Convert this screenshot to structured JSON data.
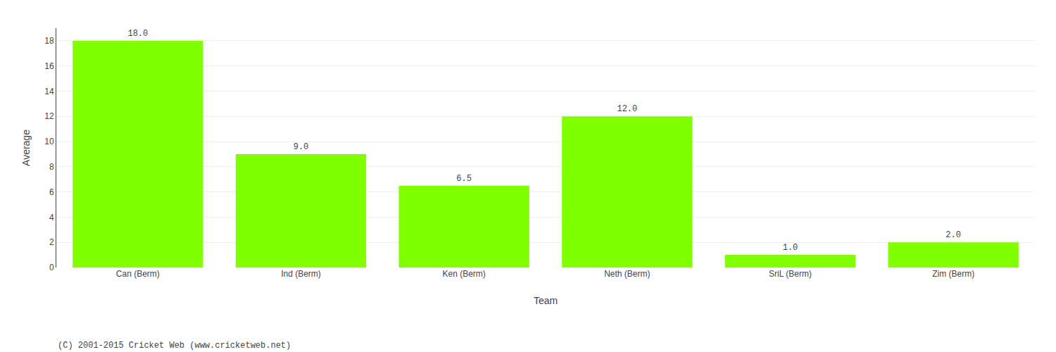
{
  "chart_data": {
    "type": "bar",
    "categories": [
      "Can (Berm)",
      "Ind (Berm)",
      "Ken (Berm)",
      "Neth (Berm)",
      "SriL (Berm)",
      "Zim (Berm)"
    ],
    "values": [
      18.0,
      9.0,
      6.5,
      12.0,
      1.0,
      2.0
    ],
    "value_labels": [
      "18.0",
      "9.0",
      "6.5",
      "12.0",
      "1.0",
      "2.0"
    ],
    "data_labels": true,
    "color": "#7fff00",
    "xlabel": "Team",
    "ylabel": "Average",
    "ylim": [
      0,
      19
    ],
    "yticks": [
      0,
      2,
      4,
      6,
      8,
      10,
      12,
      14,
      16,
      18
    ],
    "grid": true,
    "annotations": [
      "(C) 2001-2015 Cricket Web (www.cricketweb.net)"
    ]
  }
}
